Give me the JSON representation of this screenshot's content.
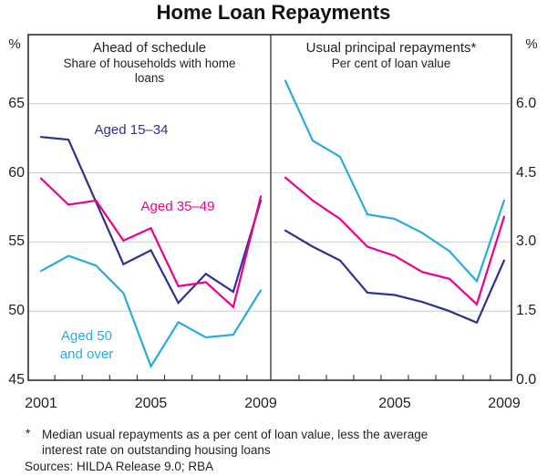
{
  "title": "Home Loan Repayments",
  "left_axis_unit": "%",
  "right_axis_unit": "%",
  "chart_data": [
    {
      "type": "line",
      "panel": "left",
      "title": "Ahead of schedule",
      "subtitle": "Share of households with home loans",
      "x": [
        2001,
        2002,
        2003,
        2004,
        2005,
        2006,
        2007,
        2008,
        2009
      ],
      "x_tick_labels": [
        {
          "x": 2001,
          "label": "2001"
        },
        {
          "x": 2005,
          "label": "2005"
        },
        {
          "x": 2009,
          "label": "2009"
        }
      ],
      "ylim": [
        45,
        70
      ],
      "y_ticks": [
        {
          "v": 65,
          "label": "65"
        },
        {
          "v": 60,
          "label": "60"
        },
        {
          "v": 55,
          "label": "55"
        },
        {
          "v": 50,
          "label": "50"
        },
        {
          "v": 45,
          "label": "45"
        }
      ],
      "grid": true,
      "series": [
        {
          "name": "Aged 15–34",
          "color": "#2e3192",
          "values": [
            62.6,
            62.4,
            57.9,
            53.4,
            54.4,
            50.6,
            52.7,
            51.4,
            58.0
          ]
        },
        {
          "name": "Aged 35–49",
          "color": "#ec008c",
          "values": [
            59.6,
            57.7,
            58.0,
            55.1,
            56.0,
            51.8,
            52.1,
            50.3,
            58.3
          ]
        },
        {
          "name": "Aged 50 and over",
          "color": "#29abe2",
          "values": [
            52.9,
            54.0,
            53.3,
            51.3,
            46.0,
            49.2,
            48.1,
            48.3,
            51.5
          ]
        }
      ]
    },
    {
      "type": "line",
      "panel": "right",
      "title": "Usual principal repayments*",
      "subtitle": "Per cent of loan value",
      "x": [
        2001,
        2002,
        2003,
        2004,
        2005,
        2006,
        2007,
        2008,
        2009
      ],
      "x_tick_labels": [
        {
          "x": 2005,
          "label": "2005"
        },
        {
          "x": 2009,
          "label": "2009"
        }
      ],
      "ylim": [
        0,
        7.5
      ],
      "y_ticks": [
        {
          "v": 6.0,
          "label": "6.0"
        },
        {
          "v": 4.5,
          "label": "4.5"
        },
        {
          "v": 3.0,
          "label": "3.0"
        },
        {
          "v": 1.5,
          "label": "1.5"
        },
        {
          "v": 0.0,
          "label": "0.0"
        }
      ],
      "grid": true,
      "series": [
        {
          "name": "Aged 15–34",
          "color": "#2e3192",
          "values": [
            3.25,
            2.9,
            2.6,
            1.9,
            1.85,
            1.7,
            1.5,
            1.25,
            2.6
          ]
        },
        {
          "name": "Aged 35–49",
          "color": "#ec008c",
          "values": [
            4.4,
            3.9,
            3.5,
            2.9,
            2.7,
            2.35,
            2.2,
            1.65,
            3.55
          ]
        },
        {
          "name": "Aged 50 and over",
          "color": "#29abe2",
          "values": [
            6.5,
            5.2,
            4.85,
            3.6,
            3.5,
            3.2,
            2.8,
            2.15,
            3.9
          ]
        }
      ]
    }
  ],
  "footnote": {
    "marker": "*",
    "lines": [
      "Median usual repayments as a per cent of loan value, less the average",
      "interest rate on outstanding housing loans"
    ]
  },
  "sources": "Sources: HILDA Release 9.0; RBA"
}
